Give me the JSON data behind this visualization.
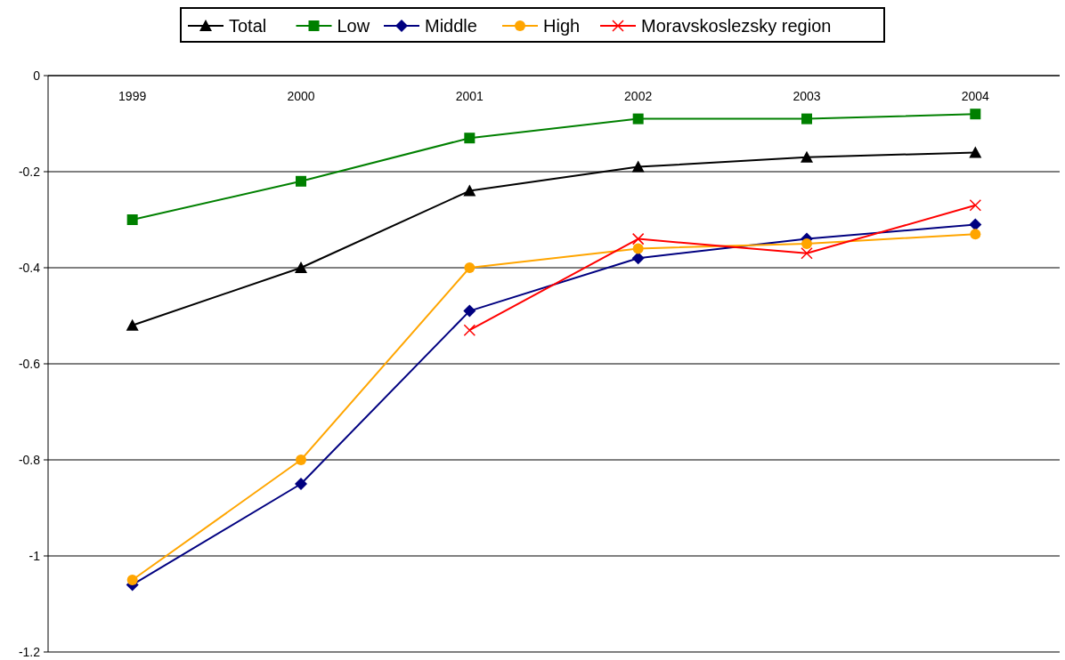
{
  "chart_data": {
    "type": "line",
    "categories": [
      "1999",
      "2000",
      "2001",
      "2002",
      "2003",
      "2004"
    ],
    "series": [
      {
        "name": "Total",
        "color": "#000000",
        "marker": "triangle",
        "values": [
          -0.52,
          -0.4,
          -0.24,
          -0.19,
          -0.17,
          -0.16
        ]
      },
      {
        "name": "Low",
        "color": "#008000",
        "marker": "square",
        "values": [
          -0.3,
          -0.22,
          -0.13,
          -0.09,
          -0.09,
          -0.08
        ]
      },
      {
        "name": "Middle",
        "color": "#000080",
        "marker": "diamond",
        "values": [
          -1.06,
          -0.85,
          -0.49,
          -0.38,
          -0.34,
          -0.31
        ]
      },
      {
        "name": "High",
        "color": "#ffa500",
        "marker": "circle",
        "values": [
          -1.05,
          -0.8,
          -0.4,
          -0.36,
          -0.35,
          -0.33
        ]
      },
      {
        "name": "Moravskoslezsky region",
        "color": "#ff0000",
        "marker": "cross",
        "values": [
          null,
          null,
          -0.53,
          -0.34,
          -0.37,
          -0.27
        ]
      }
    ],
    "ylim": [
      -1.2,
      0
    ],
    "yticks": [
      0,
      -0.2,
      -0.4,
      -0.6,
      -0.8,
      -1,
      -1.2
    ],
    "grid": "y",
    "legend": "top",
    "line_style": "solid"
  }
}
